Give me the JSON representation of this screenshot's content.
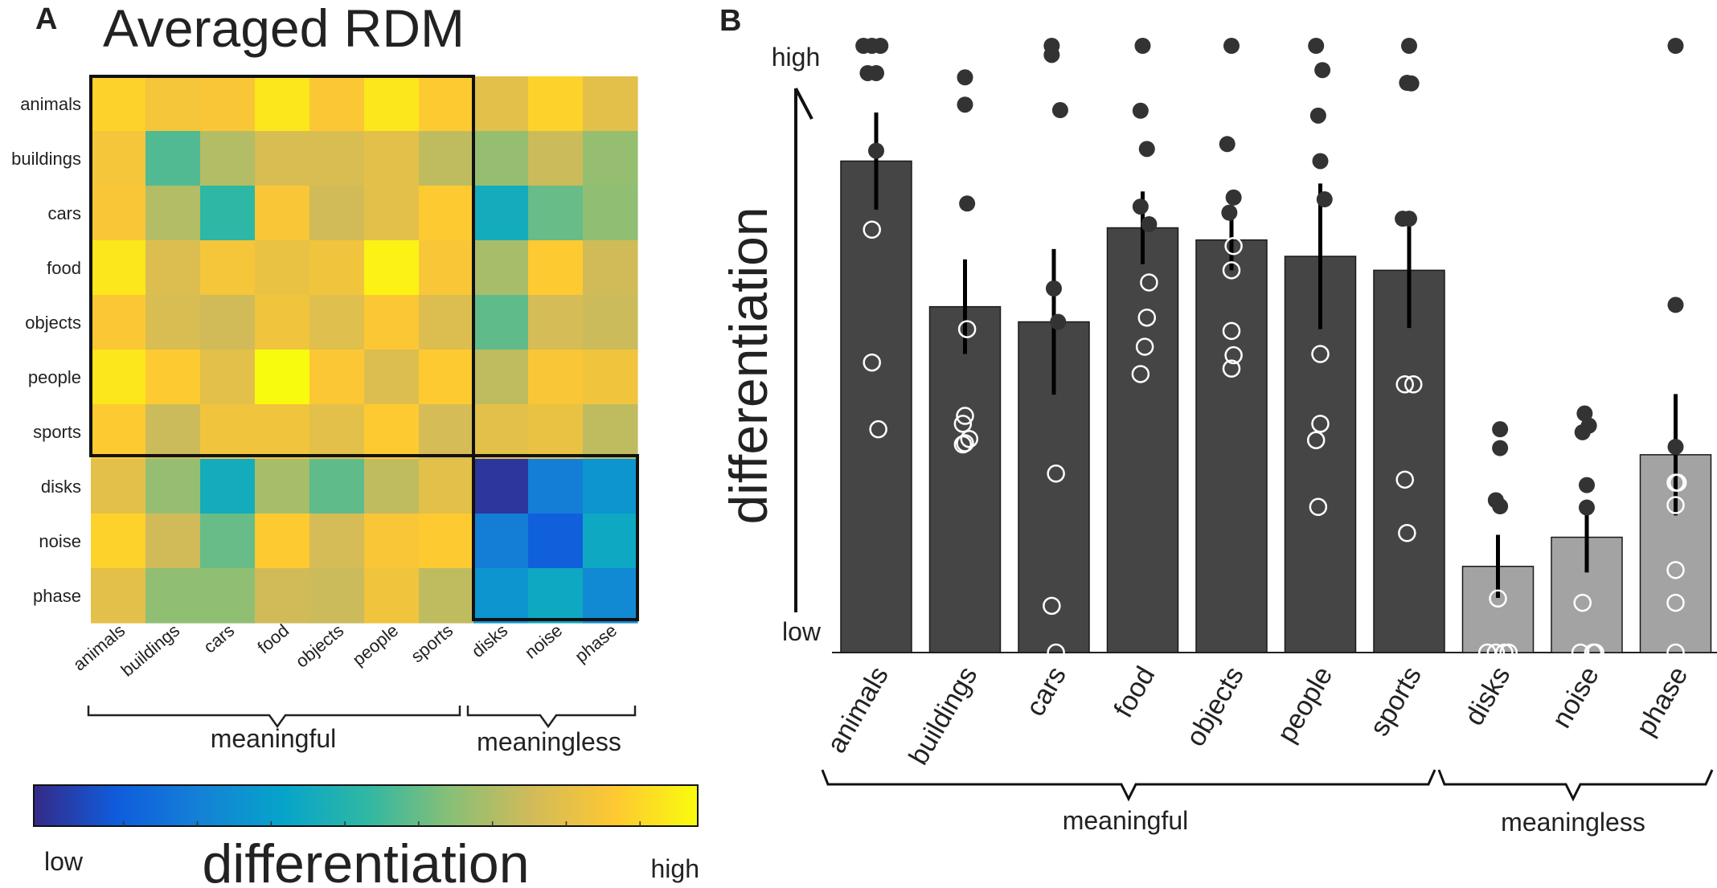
{
  "panel_a": {
    "label": "A",
    "chart_data": {
      "type": "heatmap",
      "title": "Averaged RDM",
      "rows": [
        "animals",
        "buildings",
        "cars",
        "food",
        "objects",
        "people",
        "sports",
        "disks",
        "noise",
        "phase"
      ],
      "cols": [
        "animals",
        "buildings",
        "cars",
        "food",
        "objects",
        "people",
        "sports",
        "disks",
        "noise",
        "phase"
      ],
      "values": [
        [
          0.9,
          0.85,
          0.86,
          0.95,
          0.87,
          0.95,
          0.88,
          0.8,
          0.9,
          0.8
        ],
        [
          0.85,
          0.55,
          0.7,
          0.77,
          0.77,
          0.8,
          0.72,
          0.65,
          0.74,
          0.65
        ],
        [
          0.86,
          0.7,
          0.5,
          0.86,
          0.75,
          0.8,
          0.88,
          0.42,
          0.58,
          0.64
        ],
        [
          0.95,
          0.78,
          0.85,
          0.82,
          0.84,
          0.98,
          0.86,
          0.68,
          0.88,
          0.75
        ],
        [
          0.87,
          0.77,
          0.75,
          0.84,
          0.79,
          0.87,
          0.78,
          0.57,
          0.76,
          0.74
        ],
        [
          0.95,
          0.88,
          0.8,
          1.0,
          0.87,
          0.78,
          0.88,
          0.72,
          0.86,
          0.84
        ],
        [
          0.88,
          0.74,
          0.84,
          0.84,
          0.8,
          0.88,
          0.76,
          0.8,
          0.82,
          0.72
        ],
        [
          0.8,
          0.65,
          0.42,
          0.68,
          0.57,
          0.72,
          0.8,
          0.03,
          0.24,
          0.32
        ],
        [
          0.9,
          0.75,
          0.58,
          0.88,
          0.76,
          0.86,
          0.88,
          0.24,
          0.14,
          0.4
        ],
        [
          0.8,
          0.64,
          0.64,
          0.75,
          0.74,
          0.84,
          0.72,
          0.32,
          0.4,
          0.28
        ]
      ],
      "groups": [
        "meaningful",
        "meaningless"
      ],
      "colorbar": {
        "label": "differentiation",
        "low": "low",
        "high": "high"
      }
    }
  },
  "panel_b": {
    "label": "B",
    "chart_data": {
      "type": "bar",
      "ylabel": "differentiation",
      "y_tick_high": "high",
      "y_tick_low": "low",
      "ylim": [
        0,
        1
      ],
      "categories": [
        "animals",
        "buildings",
        "cars",
        "food",
        "objects",
        "people",
        "sports",
        "disks",
        "noise",
        "phase"
      ],
      "values": [
        0.81,
        0.57,
        0.545,
        0.7,
        0.68,
        0.653,
        0.63,
        0.142,
        0.19,
        0.326
      ],
      "error": [
        0.08,
        0.078,
        0.12,
        0.06,
        0.05,
        0.12,
        0.095,
        0.052,
        0.058,
        0.1
      ],
      "bar_colors": [
        "#454545",
        "#454545",
        "#454545",
        "#454545",
        "#454545",
        "#454545",
        "#454545",
        "#a3a3a3",
        "#a3a3a3",
        "#a3a3a3"
      ],
      "points": [
        [
          [
            -0.3,
            1.0
          ],
          [
            -0.1,
            1.0
          ],
          [
            0.1,
            1.0
          ],
          [
            -0.2,
            0.955
          ],
          [
            0.0,
            0.955
          ],
          [
            0.0,
            0.827
          ],
          [
            -0.1,
            0.697
          ],
          [
            -0.1,
            0.478
          ],
          [
            0.05,
            0.368
          ]
        ],
        [
          [
            0.0,
            0.948
          ],
          [
            0.0,
            0.903
          ],
          [
            0.05,
            0.74
          ],
          [
            0.05,
            0.533
          ],
          [
            0.0,
            0.39
          ],
          [
            -0.05,
            0.377
          ],
          [
            0.0,
            0.345
          ],
          [
            0.1,
            0.352
          ],
          [
            -0.05,
            0.343
          ]
        ],
        [
          [
            -0.05,
            1.0
          ],
          [
            -0.05,
            0.985
          ],
          [
            0.15,
            0.894
          ],
          [
            0.0,
            0.6
          ],
          [
            0.1,
            0.545
          ],
          [
            0.05,
            0.295
          ],
          [
            -0.05,
            0.077
          ],
          [
            0.05,
            0.0
          ]
        ],
        [
          [
            0.0,
            1.0
          ],
          [
            -0.05,
            0.893
          ],
          [
            0.1,
            0.83
          ],
          [
            -0.05,
            0.735
          ],
          [
            0.15,
            0.706
          ],
          [
            0.15,
            0.61
          ],
          [
            0.1,
            0.552
          ],
          [
            0.05,
            0.504
          ],
          [
            -0.05,
            0.459
          ]
        ],
        [
          [
            0.0,
            1.0
          ],
          [
            -0.1,
            0.838
          ],
          [
            0.05,
            0.75
          ],
          [
            -0.05,
            0.725
          ],
          [
            0.05,
            0.67
          ],
          [
            0.0,
            0.63
          ],
          [
            0.0,
            0.53
          ],
          [
            0.05,
            0.49
          ],
          [
            0.0,
            0.468
          ]
        ],
        [
          [
            -0.1,
            1.0
          ],
          [
            0.05,
            0.96
          ],
          [
            -0.05,
            0.885
          ],
          [
            0.0,
            0.81
          ],
          [
            0.1,
            0.747
          ],
          [
            0.0,
            0.492
          ],
          [
            0.0,
            0.377
          ],
          [
            -0.1,
            0.35
          ],
          [
            -0.05,
            0.24
          ]
        ],
        [
          [
            0.0,
            1.0
          ],
          [
            -0.05,
            0.939
          ],
          [
            0.05,
            0.938
          ],
          [
            -0.15,
            0.715
          ],
          [
            0.0,
            0.715
          ],
          [
            -0.1,
            0.442
          ],
          [
            0.1,
            0.442
          ],
          [
            -0.1,
            0.285
          ],
          [
            -0.05,
            0.197
          ]
        ],
        [
          [
            0.05,
            0.368
          ],
          [
            0.05,
            0.337
          ],
          [
            -0.05,
            0.251
          ],
          [
            0.05,
            0.241
          ],
          [
            0.0,
            0.089
          ],
          [
            -0.25,
            0.0
          ],
          [
            -0.05,
            0.0
          ],
          [
            0.15,
            0.0
          ],
          [
            0.25,
            0.0
          ]
        ],
        [
          [
            -0.05,
            0.394
          ],
          [
            0.05,
            0.374
          ],
          [
            -0.1,
            0.363
          ],
          [
            0.0,
            0.276
          ],
          [
            0.0,
            0.239
          ],
          [
            -0.1,
            0.082
          ],
          [
            -0.15,
            0.0
          ],
          [
            0.15,
            0.0
          ],
          [
            0.2,
            0.0
          ]
        ],
        [
          [
            0.0,
            1.0
          ],
          [
            0.0,
            0.573
          ],
          [
            0.0,
            0.339
          ],
          [
            0.0,
            0.28
          ],
          [
            0.05,
            0.28
          ],
          [
            0.0,
            0.243
          ],
          [
            0.0,
            0.136
          ],
          [
            0.0,
            0.082
          ],
          [
            0.0,
            0.0
          ]
        ]
      ],
      "groups": [
        "meaningful",
        "meaningless"
      ]
    }
  }
}
